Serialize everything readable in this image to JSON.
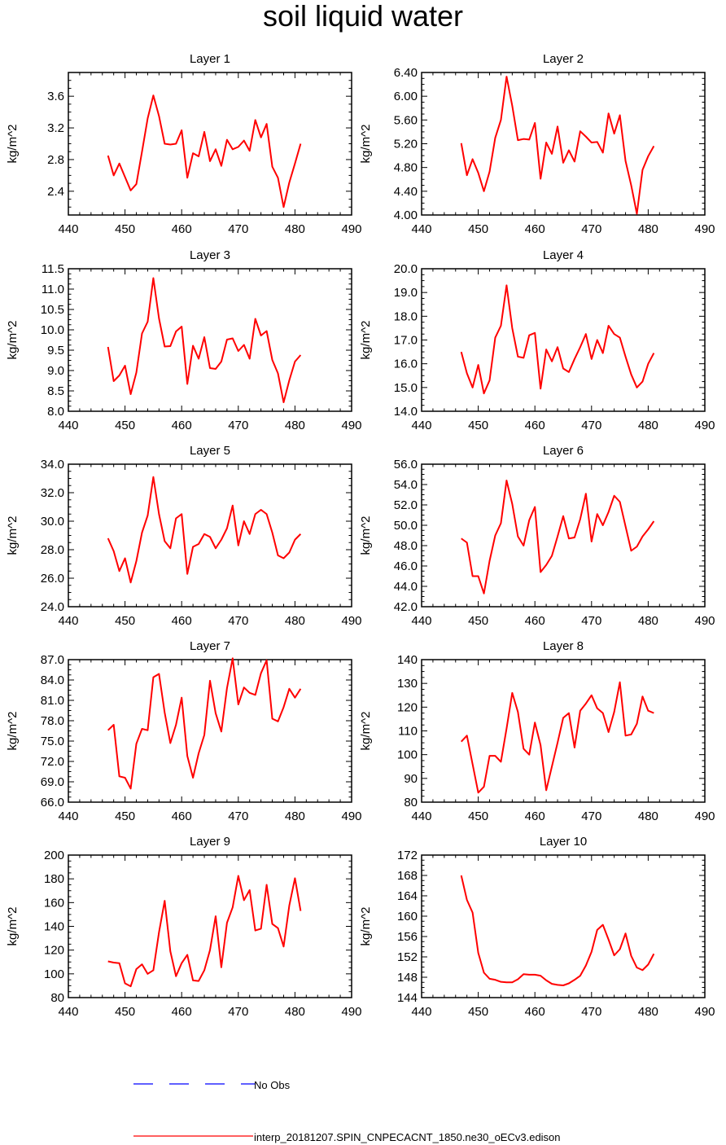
{
  "title": "soil liquid water",
  "ylabel": "kg/m^2",
  "xlim": [
    440,
    490
  ],
  "xticks": [
    440,
    450,
    460,
    470,
    480,
    490
  ],
  "x": [
    447,
    448,
    449,
    450,
    451,
    452,
    453,
    454,
    455,
    456,
    457,
    458,
    459,
    460,
    461,
    462,
    463,
    464,
    465,
    466,
    467,
    468,
    469,
    470,
    471,
    472,
    473,
    474,
    475,
    476,
    477,
    478,
    479,
    480,
    481
  ],
  "line_color": "#ff0000",
  "obs_color": "#0000ff",
  "legend": {
    "obs_label": "No Obs",
    "model_label": "interp_20181207.SPIN_CNPECACNT_1850.ne30_oECv3.edison"
  },
  "chart_data": [
    {
      "type": "line",
      "title": "Layer 1",
      "ylim": [
        2.1,
        3.9
      ],
      "yticks": [
        2.4,
        2.8,
        3.2,
        3.6
      ],
      "ytick_labels": [
        "2.4",
        "2.8",
        "3.2",
        "3.6"
      ],
      "values": [
        2.85,
        2.6,
        2.75,
        2.58,
        2.41,
        2.49,
        2.9,
        3.32,
        3.61,
        3.35,
        3.0,
        2.99,
        3.0,
        3.17,
        2.57,
        2.88,
        2.84,
        3.15,
        2.78,
        2.93,
        2.72,
        3.05,
        2.93,
        2.96,
        3.04,
        2.91,
        3.3,
        3.08,
        3.25,
        2.71,
        2.57,
        2.2,
        2.51,
        2.75,
        3.0
      ]
    },
    {
      "type": "line",
      "title": "Layer 2",
      "ylim": [
        4.0,
        6.4
      ],
      "yticks": [
        4.0,
        4.4,
        4.8,
        5.2,
        5.6,
        6.0,
        6.4
      ],
      "ytick_labels": [
        "4.00",
        "4.40",
        "4.80",
        "5.20",
        "5.60",
        "6.00",
        "6.40"
      ],
      "values": [
        5.21,
        4.67,
        4.94,
        4.71,
        4.4,
        4.73,
        5.3,
        5.6,
        6.33,
        5.84,
        5.26,
        5.28,
        5.27,
        5.55,
        4.61,
        5.22,
        5.03,
        5.49,
        4.88,
        5.09,
        4.9,
        5.41,
        5.32,
        5.22,
        5.23,
        5.05,
        5.71,
        5.37,
        5.68,
        4.91,
        4.5,
        4.02,
        4.76,
        4.99,
        5.16
      ]
    },
    {
      "type": "line",
      "title": "Layer 3",
      "ylim": [
        8.0,
        11.5
      ],
      "yticks": [
        8.0,
        8.5,
        9.0,
        9.5,
        10.0,
        10.5,
        11.0,
        11.5
      ],
      "ytick_labels": [
        "8.0",
        "8.5",
        "9.0",
        "9.5",
        "10.0",
        "10.5",
        "11.0",
        "11.5"
      ],
      "values": [
        9.58,
        8.74,
        8.88,
        9.12,
        8.42,
        8.95,
        9.91,
        10.2,
        11.27,
        10.28,
        9.59,
        9.6,
        9.96,
        10.08,
        8.67,
        9.61,
        9.29,
        9.82,
        9.06,
        9.04,
        9.22,
        9.76,
        9.79,
        9.48,
        9.63,
        9.29,
        10.27,
        9.86,
        9.97,
        9.26,
        8.93,
        8.22,
        8.76,
        9.22,
        9.38
      ]
    },
    {
      "type": "line",
      "title": "Layer 4",
      "ylim": [
        14.0,
        20.0
      ],
      "yticks": [
        14,
        15,
        16,
        17,
        18,
        19,
        20
      ],
      "ytick_labels": [
        "14.0",
        "15.0",
        "16.0",
        "17.0",
        "18.0",
        "19.0",
        "20.0"
      ],
      "values": [
        16.5,
        15.6,
        15.0,
        15.95,
        14.75,
        15.3,
        17.1,
        17.6,
        19.3,
        17.5,
        16.3,
        16.25,
        17.2,
        17.3,
        14.95,
        16.6,
        16.1,
        16.7,
        15.8,
        15.65,
        16.2,
        16.7,
        17.25,
        16.2,
        17.0,
        16.45,
        17.6,
        17.25,
        17.1,
        16.3,
        15.55,
        15.0,
        15.25,
        16.0,
        16.45
      ]
    },
    {
      "type": "line",
      "title": "Layer 5",
      "ylim": [
        24.0,
        34.0
      ],
      "yticks": [
        24,
        26,
        28,
        30,
        32,
        34
      ],
      "ytick_labels": [
        "24.0",
        "26.0",
        "28.0",
        "30.0",
        "32.0",
        "34.0"
      ],
      "values": [
        28.8,
        27.9,
        26.5,
        27.4,
        25.7,
        27.2,
        29.2,
        30.4,
        33.1,
        30.5,
        28.6,
        28.1,
        30.2,
        30.5,
        26.3,
        28.2,
        28.4,
        29.1,
        28.9,
        28.1,
        28.7,
        29.5,
        31.1,
        28.3,
        30.0,
        29.1,
        30.5,
        30.8,
        30.5,
        29.2,
        27.6,
        27.4,
        27.8,
        28.7,
        29.1
      ]
    },
    {
      "type": "line",
      "title": "Layer 6",
      "ylim": [
        42.0,
        56.0
      ],
      "yticks": [
        42,
        44,
        46,
        48,
        50,
        52,
        54,
        56
      ],
      "ytick_labels": [
        "42.0",
        "44.0",
        "46.0",
        "48.0",
        "50.0",
        "52.0",
        "54.0",
        "56.0"
      ],
      "values": [
        48.7,
        48.3,
        45.0,
        45.0,
        43.3,
        46.5,
        49.0,
        50.2,
        54.4,
        52.1,
        48.9,
        48.0,
        50.5,
        51.8,
        45.4,
        46.1,
        47.0,
        48.9,
        50.9,
        48.7,
        48.8,
        50.6,
        53.1,
        48.4,
        51.1,
        50.0,
        51.3,
        52.9,
        52.3,
        49.9,
        47.5,
        47.9,
        48.9,
        49.6,
        50.4
      ]
    },
    {
      "type": "line",
      "title": "Layer 7",
      "ylim": [
        66.0,
        87.0
      ],
      "yticks": [
        66,
        69,
        72,
        75,
        78,
        81,
        84,
        87
      ],
      "ytick_labels": [
        "66.0",
        "69.0",
        "72.0",
        "75.0",
        "78.0",
        "81.0",
        "84.0",
        "87.0"
      ],
      "values": [
        76.6,
        77.4,
        69.8,
        69.6,
        68.0,
        74.6,
        76.8,
        76.6,
        84.4,
        84.9,
        79.2,
        74.7,
        77.4,
        81.4,
        72.8,
        69.6,
        73.2,
        75.9,
        83.9,
        79.1,
        76.4,
        82.8,
        87.2,
        80.4,
        82.9,
        82.1,
        81.8,
        85.0,
        86.9,
        78.3,
        77.9,
        80.0,
        82.7,
        81.4,
        82.7
      ]
    },
    {
      "type": "line",
      "title": "Layer 8",
      "ylim": [
        80,
        140
      ],
      "yticks": [
        80,
        90,
        100,
        110,
        120,
        130,
        140
      ],
      "ytick_labels": [
        "80",
        "90",
        "100",
        "110",
        "120",
        "130",
        "140"
      ],
      "values": [
        105.5,
        108.0,
        96.0,
        84.0,
        86.5,
        99.5,
        99.5,
        97.0,
        111.0,
        126.0,
        118.0,
        102.5,
        100.0,
        113.5,
        104.0,
        85.0,
        95.0,
        105.0,
        115.5,
        117.5,
        103.0,
        118.5,
        121.5,
        125.0,
        119.5,
        117.5,
        109.5,
        118.0,
        130.5,
        108.0,
        108.5,
        113.0,
        124.5,
        118.5,
        117.5
      ]
    },
    {
      "type": "line",
      "title": "Layer 9",
      "ylim": [
        80,
        200
      ],
      "yticks": [
        80,
        100,
        120,
        140,
        160,
        180,
        200
      ],
      "ytick_labels": [
        "80",
        "100",
        "120",
        "140",
        "160",
        "180",
        "200"
      ],
      "values": [
        110.5,
        109.5,
        109.0,
        92.0,
        89.5,
        104.0,
        108.0,
        100.0,
        103.0,
        135.0,
        161.5,
        119.0,
        98.0,
        109.0,
        116.0,
        94.5,
        94.0,
        103.0,
        120.0,
        148.5,
        105.5,
        143.0,
        156.0,
        182.5,
        162.0,
        170.5,
        136.5,
        138.0,
        175.0,
        142.0,
        138.5,
        123.0,
        157.5,
        180.5,
        153.0
      ]
    },
    {
      "type": "line",
      "title": "Layer 10",
      "ylim": [
        144,
        172
      ],
      "yticks": [
        144,
        148,
        152,
        156,
        160,
        164,
        168,
        172
      ],
      "ytick_labels": [
        "144",
        "148",
        "152",
        "156",
        "160",
        "164",
        "168",
        "172"
      ],
      "values": [
        168.0,
        163.2,
        160.7,
        152.8,
        148.9,
        147.7,
        147.5,
        147.1,
        147.0,
        147.0,
        147.6,
        148.6,
        148.5,
        148.5,
        148.3,
        147.4,
        146.7,
        146.5,
        146.4,
        146.8,
        147.5,
        148.3,
        150.3,
        153.0,
        157.3,
        158.3,
        155.4,
        152.3,
        153.5,
        156.6,
        152.2,
        149.9,
        149.4,
        150.5,
        152.6
      ]
    }
  ]
}
